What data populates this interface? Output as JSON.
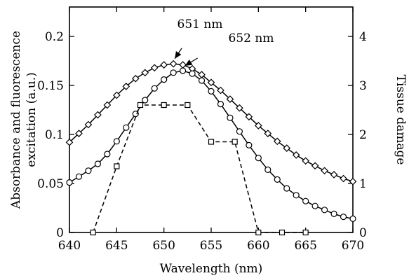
{
  "chart_data": {
    "type": "line",
    "xlabel": "Wavelength (nm)",
    "ylabel": "Absorbance and fluorescence excitation (a.u.)",
    "ylabel_lines": [
      "Absorbance and fluorescence",
      "excitation (a.u.)"
    ],
    "y2label": "Tissue damage",
    "xlim": [
      640,
      670
    ],
    "ylim": [
      0,
      0.23
    ],
    "y2lim": [
      0,
      4.6
    ],
    "xticks": [
      "640",
      "645",
      "650",
      "655",
      "660",
      "665",
      "670"
    ],
    "yticks": [
      "0",
      "0.05",
      "0.1",
      "0.15",
      "0.2"
    ],
    "y2ticks": [
      "0",
      "1",
      "2",
      "3",
      "4"
    ],
    "annotations": [
      {
        "text": "651 nm",
        "x": 651,
        "y": 0.173
      },
      {
        "text": "652 nm",
        "x": 652,
        "y": 0.165
      }
    ],
    "series": [
      {
        "marker": "diamond",
        "style": "solid",
        "axis": "left",
        "x": [
          640,
          641,
          642,
          643,
          644,
          645,
          646,
          647,
          648,
          649,
          650,
          651,
          652,
          653,
          654,
          655,
          656,
          657,
          658,
          659,
          660,
          661,
          662,
          663,
          664,
          665,
          666,
          667,
          668,
          669,
          670
        ],
        "y": [
          0.092,
          0.101,
          0.11,
          0.12,
          0.13,
          0.14,
          0.149,
          0.157,
          0.163,
          0.168,
          0.171,
          0.172,
          0.171,
          0.167,
          0.161,
          0.153,
          0.145,
          0.136,
          0.127,
          0.118,
          0.109,
          0.101,
          0.093,
          0.086,
          0.079,
          0.073,
          0.068,
          0.063,
          0.059,
          0.055,
          0.052
        ]
      },
      {
        "marker": "circle",
        "style": "solid",
        "axis": "left",
        "x": [
          640,
          641,
          642,
          643,
          644,
          645,
          646,
          647,
          648,
          649,
          650,
          651,
          652,
          653,
          654,
          655,
          656,
          657,
          658,
          659,
          660,
          661,
          662,
          663,
          664,
          665,
          666,
          667,
          668,
          669,
          670
        ],
        "y": [
          0.051,
          0.057,
          0.063,
          0.07,
          0.08,
          0.093,
          0.107,
          0.121,
          0.135,
          0.147,
          0.156,
          0.163,
          0.165,
          0.162,
          0.155,
          0.144,
          0.131,
          0.117,
          0.103,
          0.089,
          0.076,
          0.064,
          0.054,
          0.045,
          0.038,
          0.032,
          0.027,
          0.023,
          0.019,
          0.016,
          0.014
        ]
      },
      {
        "marker": "square",
        "style": "dashed",
        "axis": "right",
        "x": [
          642.5,
          645,
          647.5,
          650,
          652.5,
          655,
          657.5,
          660,
          662.5,
          665
        ],
        "y": [
          0.0,
          1.35,
          2.6,
          2.6,
          2.6,
          1.85,
          1.85,
          0.0,
          0.0,
          0.0
        ]
      }
    ]
  }
}
